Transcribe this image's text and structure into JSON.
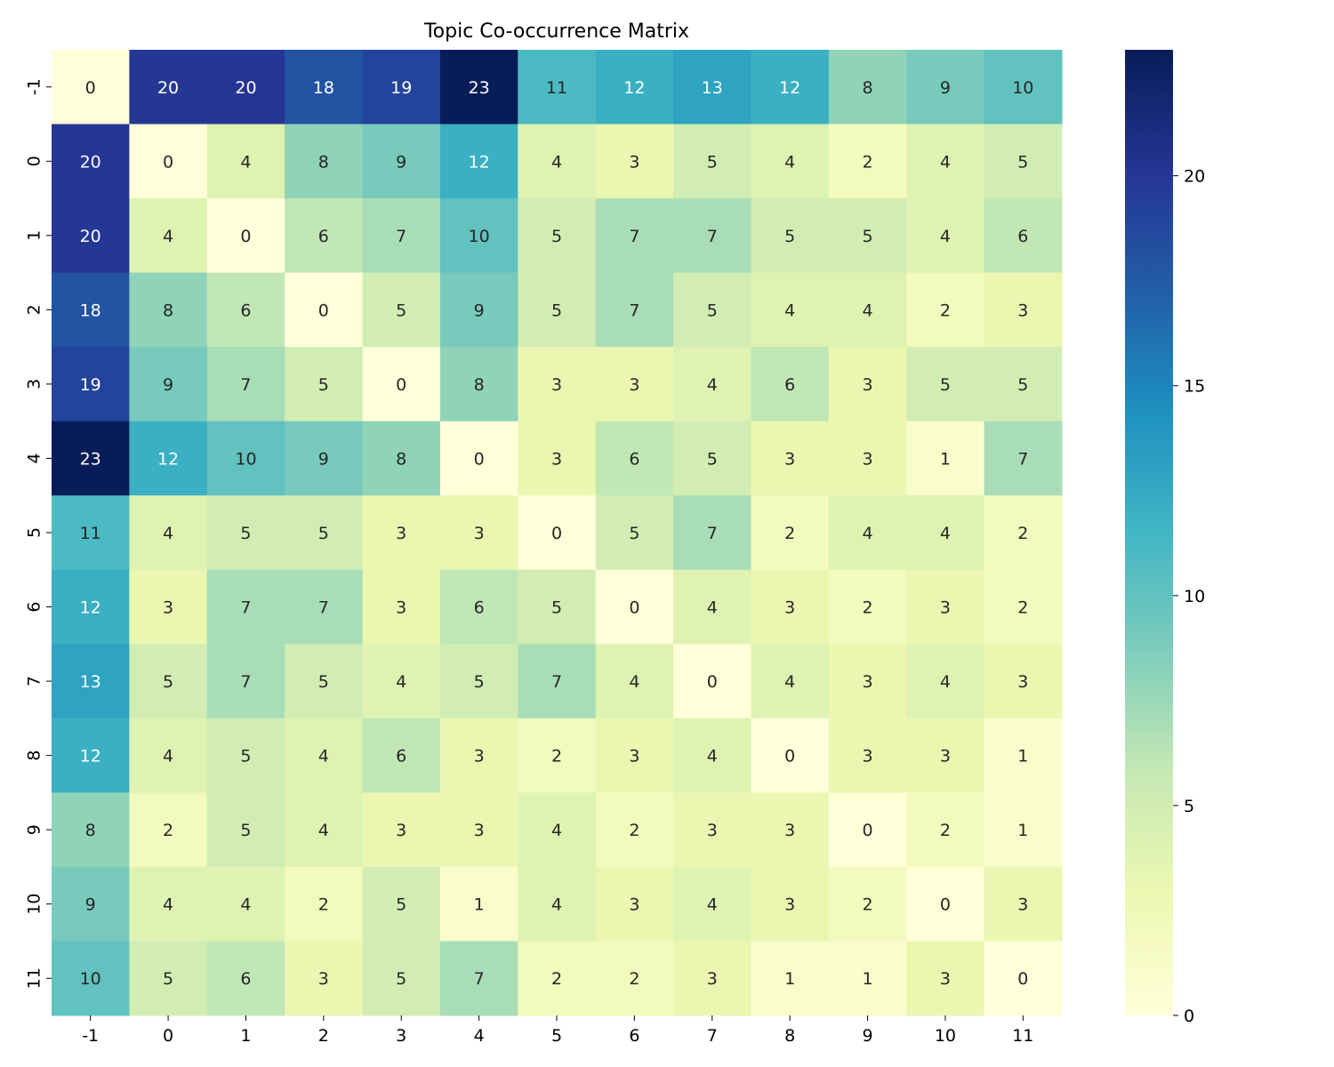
{
  "chart_data": {
    "type": "heatmap",
    "title": "Topic Co-occurrence Matrix",
    "x_labels": [
      "-1",
      "0",
      "1",
      "2",
      "3",
      "4",
      "5",
      "6",
      "7",
      "8",
      "9",
      "10",
      "11"
    ],
    "y_labels": [
      "-1",
      "0",
      "1",
      "2",
      "3",
      "4",
      "5",
      "6",
      "7",
      "8",
      "9",
      "10",
      "11"
    ],
    "values": [
      [
        0,
        20,
        20,
        18,
        19,
        23,
        11,
        12,
        13,
        12,
        8,
        9,
        10
      ],
      [
        20,
        0,
        4,
        8,
        9,
        12,
        4,
        3,
        5,
        4,
        2,
        4,
        5
      ],
      [
        20,
        4,
        0,
        6,
        7,
        10,
        5,
        7,
        7,
        5,
        5,
        4,
        6
      ],
      [
        18,
        8,
        6,
        0,
        5,
        9,
        5,
        7,
        5,
        4,
        4,
        2,
        3
      ],
      [
        19,
        9,
        7,
        5,
        0,
        8,
        3,
        3,
        4,
        6,
        3,
        5,
        5
      ],
      [
        23,
        12,
        10,
        9,
        8,
        0,
        3,
        6,
        5,
        3,
        3,
        1,
        7
      ],
      [
        11,
        4,
        5,
        5,
        3,
        3,
        0,
        5,
        7,
        2,
        4,
        4,
        2
      ],
      [
        12,
        3,
        7,
        7,
        3,
        6,
        5,
        0,
        4,
        3,
        2,
        3,
        2
      ],
      [
        13,
        5,
        7,
        5,
        4,
        5,
        7,
        4,
        0,
        4,
        3,
        4,
        3
      ],
      [
        12,
        4,
        5,
        4,
        6,
        3,
        2,
        3,
        4,
        0,
        3,
        3,
        1
      ],
      [
        8,
        2,
        5,
        4,
        3,
        3,
        4,
        2,
        3,
        3,
        0,
        2,
        1
      ],
      [
        9,
        4,
        4,
        2,
        5,
        1,
        4,
        3,
        4,
        3,
        2,
        0,
        3
      ],
      [
        10,
        5,
        6,
        3,
        5,
        7,
        2,
        2,
        3,
        1,
        1,
        3,
        0
      ]
    ],
    "colormap": "YlGnBu",
    "vmin": 0,
    "vmax": 23,
    "colorbar_ticks": [
      "0",
      "5",
      "10",
      "15",
      "20"
    ],
    "colorbar_tick_values": [
      0,
      5,
      10,
      15,
      20
    ],
    "annotations": true,
    "annotation_light_color": "#ffffff",
    "annotation_dark_color": "#262626",
    "colormap_stops": [
      "#ffffd9",
      "#edf8b1",
      "#c7e9b4",
      "#7fcdbb",
      "#41b6c4",
      "#1d91c0",
      "#225ea8",
      "#253494",
      "#081d58"
    ]
  }
}
